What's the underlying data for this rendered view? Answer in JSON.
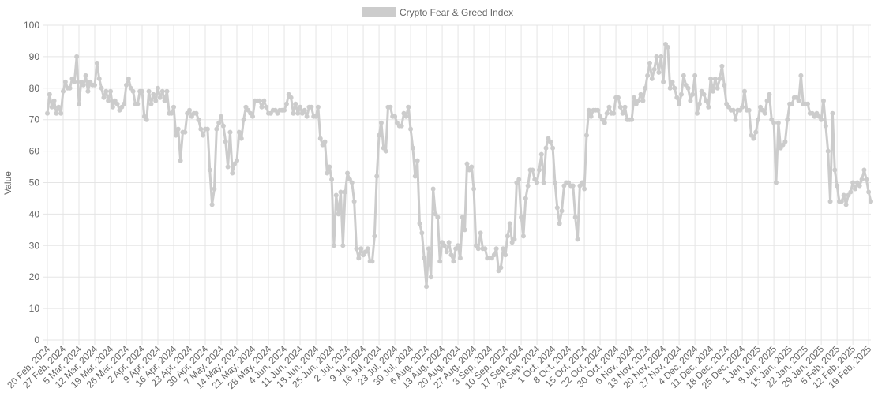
{
  "chart_data": {
    "type": "line",
    "y_label": "Value",
    "legend": "top",
    "grid": true,
    "ylim": [
      0,
      100
    ],
    "yticks": [
      0,
      10,
      20,
      30,
      40,
      50,
      60,
      70,
      80,
      90,
      100
    ],
    "categories": [
      "20 Feb, 2024",
      null,
      null,
      null,
      null,
      null,
      null,
      "27 Feb, 2024",
      null,
      null,
      null,
      null,
      null,
      null,
      "5 Mar, 2024",
      null,
      null,
      null,
      null,
      null,
      null,
      "12 Mar, 2024",
      null,
      null,
      null,
      null,
      null,
      null,
      "19 Mar, 2024",
      null,
      null,
      null,
      null,
      null,
      null,
      "26 Mar, 2024",
      null,
      null,
      null,
      null,
      null,
      null,
      "2 Apr, 2024",
      null,
      null,
      null,
      null,
      null,
      null,
      "9 Apr, 2024",
      null,
      null,
      null,
      null,
      null,
      null,
      "16 Apr, 2024",
      null,
      null,
      null,
      null,
      null,
      null,
      "23 Apr, 2024",
      null,
      null,
      null,
      null,
      null,
      null,
      "30 Apr, 2024",
      null,
      null,
      null,
      null,
      null,
      null,
      "7 May, 2024",
      null,
      null,
      null,
      null,
      null,
      null,
      "14 May, 2024",
      null,
      null,
      null,
      null,
      null,
      null,
      "21 May, 2024",
      null,
      null,
      null,
      null,
      null,
      null,
      "28 May, 2024",
      null,
      null,
      null,
      null,
      null,
      null,
      "4 Jun, 2024",
      null,
      null,
      null,
      null,
      null,
      null,
      "11 Jun, 2024",
      null,
      null,
      null,
      null,
      null,
      null,
      "18 Jun, 2024",
      null,
      null,
      null,
      null,
      null,
      null,
      "25 Jun, 2024",
      null,
      null,
      null,
      null,
      null,
      null,
      "2 Jul, 2024",
      null,
      null,
      null,
      null,
      null,
      null,
      "9 Jul, 2024",
      null,
      null,
      null,
      null,
      null,
      null,
      "16 Jul, 2024",
      null,
      null,
      null,
      null,
      null,
      null,
      "23 Jul, 2024",
      null,
      null,
      null,
      null,
      null,
      null,
      "30 Jul, 2024",
      null,
      null,
      null,
      null,
      null,
      null,
      "6 Aug, 2024",
      null,
      null,
      null,
      null,
      null,
      null,
      "13 Aug, 2024",
      null,
      null,
      null,
      null,
      null,
      null,
      "20 Aug, 2024",
      null,
      null,
      null,
      null,
      null,
      null,
      "27 Aug, 2024",
      null,
      null,
      null,
      null,
      null,
      null,
      "3 Sep, 2024",
      null,
      null,
      null,
      null,
      null,
      null,
      "10 Sep, 2024",
      null,
      null,
      null,
      null,
      null,
      null,
      "17 Sep, 2024",
      null,
      null,
      null,
      null,
      null,
      null,
      "24 Sep, 2024",
      null,
      null,
      null,
      null,
      null,
      null,
      "1 Oct, 2024",
      null,
      null,
      null,
      null,
      null,
      null,
      "8 Oct, 2024",
      null,
      null,
      null,
      null,
      null,
      null,
      "15 Oct, 2024",
      null,
      null,
      null,
      null,
      null,
      null,
      "22 Oct, 2024",
      null,
      null,
      null,
      null,
      null,
      null,
      "30 Oct, 2024",
      null,
      null,
      null,
      null,
      null,
      null,
      "6 Nov, 2024",
      null,
      null,
      null,
      null,
      null,
      null,
      "13 Nov, 2024",
      null,
      null,
      null,
      null,
      null,
      null,
      "20 Nov, 2024",
      null,
      null,
      null,
      null,
      null,
      null,
      "27 Nov, 2024",
      null,
      null,
      null,
      null,
      null,
      null,
      "4 Dec, 2024",
      null,
      null,
      null,
      null,
      null,
      null,
      "11 Dec, 2024",
      null,
      null,
      null,
      null,
      null,
      null,
      "18 Dec, 2024",
      null,
      null,
      null,
      null,
      null,
      null,
      "25 Dec, 2024",
      null,
      null,
      null,
      null,
      null,
      null,
      "1 Jan, 2025",
      null,
      null,
      null,
      null,
      null,
      null,
      "8 Jan, 2025",
      null,
      null,
      null,
      null,
      null,
      null,
      "15 Jan, 2025",
      null,
      null,
      null,
      null,
      null,
      null,
      "22 Jan, 2025",
      null,
      null,
      null,
      null,
      null,
      null,
      "29 Jan, 2025",
      null,
      null,
      null,
      null,
      null,
      null,
      "5 Feb, 2025",
      null,
      null,
      null,
      null,
      null,
      null,
      "12 Feb, 2025",
      null,
      null,
      null,
      null,
      null,
      null,
      "19 Feb, 2025",
      null
    ],
    "series": [
      {
        "name": "Crypto Fear & Greed Index",
        "color": "#cccccc",
        "values": [
          72,
          78,
          74,
          76,
          72,
          74,
          72,
          79,
          82,
          80,
          80,
          83,
          82,
          90,
          75,
          82,
          81,
          84,
          79,
          82,
          81,
          81,
          88,
          83,
          80,
          77,
          79,
          76,
          79,
          74,
          76,
          75,
          73,
          74,
          75,
          81,
          83,
          80,
          79,
          75,
          75,
          79,
          79,
          71,
          70,
          79,
          75,
          78,
          76,
          80,
          77,
          79,
          76,
          79,
          72,
          72,
          74,
          65,
          67,
          57,
          66,
          66,
          72,
          73,
          71,
          72,
          72,
          70,
          67,
          65,
          67,
          67,
          54,
          43,
          48,
          67,
          69,
          71,
          68,
          63,
          55,
          66,
          53,
          56,
          57,
          66,
          64,
          70,
          74,
          73,
          72,
          71,
          76,
          76,
          76,
          74,
          76,
          74,
          72,
          72,
          73,
          73,
          72,
          73,
          73,
          73,
          75,
          78,
          77,
          72,
          75,
          72,
          74,
          72,
          73,
          71,
          74,
          74,
          71,
          71,
          74,
          64,
          62,
          63,
          53,
          55,
          51,
          30,
          46,
          40,
          47,
          30,
          47,
          53,
          51,
          50,
          44,
          29,
          26,
          29,
          27,
          28,
          29,
          25,
          25,
          33,
          52,
          65,
          69,
          61,
          60,
          74,
          74,
          71,
          71,
          69,
          68,
          68,
          72,
          71,
          74,
          67,
          61,
          52,
          57,
          37,
          34,
          26,
          17,
          29,
          20,
          48,
          40,
          39,
          25,
          31,
          30,
          28,
          31,
          27,
          25,
          29,
          30,
          26,
          39,
          35,
          56,
          54,
          55,
          48,
          30,
          29,
          34,
          29,
          29,
          26,
          26,
          26,
          27,
          29,
          22,
          23,
          29,
          27,
          33,
          37,
          31,
          32,
          50,
          51,
          39,
          33,
          45,
          49,
          54,
          54,
          51,
          50,
          54,
          59,
          50,
          61,
          64,
          63,
          61,
          50,
          42,
          37,
          41,
          49,
          50,
          50,
          49,
          49,
          39,
          32,
          49,
          50,
          48,
          65,
          73,
          71,
          73,
          73,
          73,
          71,
          70,
          69,
          72,
          74,
          72,
          72,
          77,
          77,
          74,
          72,
          74,
          70,
          70,
          70,
          77,
          75,
          76,
          78,
          76,
          80,
          84,
          88,
          83,
          86,
          90,
          85,
          90,
          82,
          94,
          93,
          80,
          82,
          80,
          77,
          75,
          78,
          84,
          81,
          80,
          76,
          78,
          84,
          72,
          75,
          79,
          78,
          76,
          74,
          83,
          79,
          83,
          80,
          83,
          87,
          81,
          75,
          74,
          73,
          73,
          70,
          73,
          73,
          74,
          79,
          73,
          73,
          65,
          64,
          66,
          70,
          74,
          73,
          72,
          76,
          78,
          70,
          69,
          50,
          69,
          61,
          62,
          63,
          70,
          75,
          75,
          77,
          77,
          76,
          84,
          75,
          75,
          75,
          72,
          72,
          71,
          72,
          71,
          70,
          76,
          68,
          60,
          44,
          72,
          54,
          49,
          44,
          44,
          46,
          43,
          46,
          47,
          50,
          48,
          50,
          49,
          51,
          54,
          51,
          47,
          44
        ]
      }
    ]
  }
}
